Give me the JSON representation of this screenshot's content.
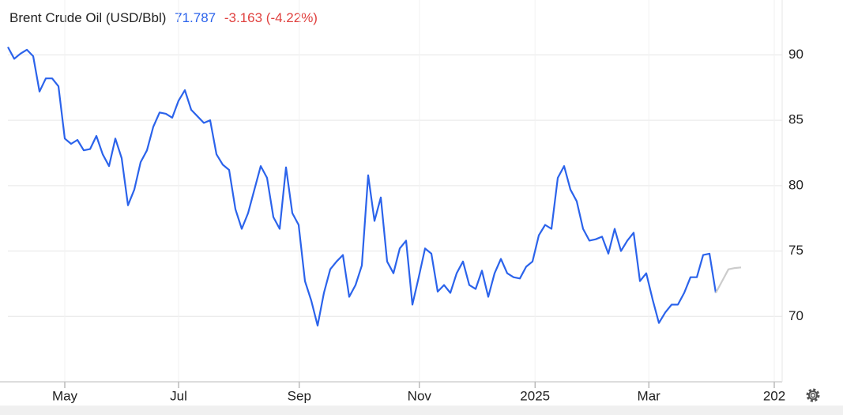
{
  "chart_data": {
    "type": "line",
    "title": "Brent Crude Oil (USD/Bbl)",
    "price": "71.787",
    "change": "-3.163 (-4.22%)",
    "series": [
      {
        "color": "#2b63eb",
        "values": [
          90.6,
          89.7,
          90.1,
          90.4,
          89.9,
          87.2,
          88.2,
          88.2,
          87.6,
          83.6,
          83.2,
          83.5,
          82.7,
          82.8,
          83.8,
          82.4,
          81.5,
          83.6,
          82.1,
          78.5,
          79.7,
          81.8,
          82.7,
          84.5,
          85.6,
          85.5,
          85.2,
          86.5,
          87.3,
          85.8,
          85.3,
          84.8,
          85.0,
          82.4,
          81.6,
          81.2,
          78.2,
          76.7,
          77.9,
          79.7,
          81.5,
          80.6,
          77.6,
          76.7,
          81.4,
          77.9,
          77.0,
          72.7,
          71.2,
          69.3,
          71.8,
          73.6,
          74.2,
          74.7,
          71.5,
          72.4,
          73.9,
          80.8,
          77.3,
          79.1,
          74.2,
          73.3,
          75.2,
          75.8,
          70.9,
          73.0,
          75.2,
          74.8,
          71.9,
          72.4,
          71.8,
          73.3,
          74.2,
          72.4,
          72.1,
          73.5,
          71.5,
          73.3,
          74.4,
          73.3,
          73.0,
          72.9,
          73.8,
          74.2,
          76.2,
          77.0,
          76.7,
          80.6,
          81.5,
          79.7,
          78.8,
          76.7,
          75.8,
          75.9,
          76.1,
          74.8,
          76.7,
          75.0,
          75.8,
          76.4,
          72.7,
          73.3,
          71.3,
          69.5,
          70.3,
          70.9,
          70.9,
          71.8,
          73.0,
          73.0,
          74.7,
          74.8,
          71.8,
          null,
          null,
          null,
          null
        ]
      },
      {
        "color": "#cccccc",
        "values": [
          null,
          null,
          null,
          null,
          null,
          null,
          null,
          null,
          null,
          null,
          null,
          null,
          null,
          null,
          null,
          null,
          null,
          null,
          null,
          null,
          null,
          null,
          null,
          null,
          null,
          null,
          null,
          null,
          null,
          null,
          null,
          null,
          null,
          null,
          null,
          null,
          null,
          null,
          null,
          null,
          null,
          null,
          null,
          null,
          null,
          null,
          null,
          null,
          null,
          null,
          null,
          null,
          null,
          null,
          null,
          null,
          null,
          null,
          null,
          null,
          null,
          null,
          null,
          null,
          null,
          null,
          null,
          null,
          null,
          null,
          null,
          null,
          null,
          null,
          null,
          null,
          null,
          null,
          null,
          null,
          null,
          null,
          null,
          null,
          null,
          null,
          null,
          null,
          null,
          null,
          null,
          null,
          null,
          null,
          null,
          null,
          null,
          null,
          null,
          null,
          null,
          null,
          null,
          null,
          null,
          null,
          null,
          null,
          null,
          null,
          null,
          null,
          71.8,
          72.7,
          73.6,
          73.7,
          73.75
        ]
      }
    ],
    "xlim": [
      0,
      122.5
    ],
    "xticks": [
      {
        "value": 9,
        "label": "May"
      },
      {
        "value": 27,
        "label": "Jul"
      },
      {
        "value": 46.1,
        "label": "Sep"
      },
      {
        "value": 65.1,
        "label": "Nov"
      },
      {
        "value": 83.4,
        "label": "2025"
      },
      {
        "value": 101.4,
        "label": "Mar"
      },
      {
        "value": 121.25,
        "label": "202"
      }
    ],
    "ylim": [
      65,
      94.2
    ],
    "yticks": [
      70,
      75,
      80,
      85,
      90
    ],
    "grid": true
  }
}
